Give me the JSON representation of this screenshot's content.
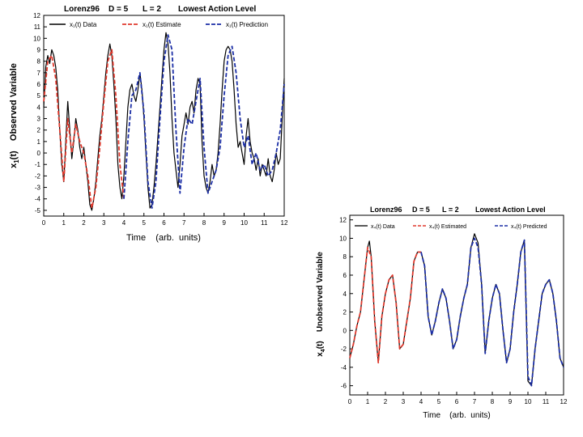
{
  "chart_data": [
    {
      "type": "line",
      "title_parts": [
        "Lorenz96",
        "D = 5",
        "L = 2",
        "Lowest Action Level"
      ],
      "xlabel": "Time    (arb.  units)",
      "ylabel_main": "x",
      "ylabel_sub": "1",
      "ylabel_rest": "(t)    Observed Variable",
      "xlim": [
        0,
        12
      ],
      "ylim": [
        -5.5,
        12
      ],
      "xticks": [
        "0",
        "1",
        "2",
        "3",
        "4",
        "5",
        "6",
        "7",
        "8",
        "9",
        "10",
        "11",
        "12"
      ],
      "yticks": [
        "-5",
        "-4",
        "-3",
        "-2",
        "-1",
        "0",
        "1",
        "2",
        "3",
        "4",
        "5",
        "6",
        "7",
        "8",
        "9",
        "10",
        "11",
        "12"
      ],
      "ytick_values": [
        -5,
        -4,
        -3,
        -2,
        -1,
        0,
        1,
        2,
        3,
        4,
        5,
        6,
        7,
        8,
        9,
        10,
        11,
        12
      ],
      "grid": false,
      "legend_position": "top",
      "series": [
        {
          "name": "x₁(t)  Data",
          "color": "#000000",
          "style": "solid",
          "x": [
            0,
            0.1,
            0.2,
            0.3,
            0.4,
            0.5,
            0.6,
            0.7,
            0.8,
            0.9,
            1.0,
            1.1,
            1.2,
            1.3,
            1.4,
            1.5,
            1.6,
            1.7,
            1.8,
            1.9,
            2.0,
            2.1,
            2.2,
            2.3,
            2.4,
            2.5,
            2.6,
            2.7,
            2.8,
            2.9,
            3.0,
            3.1,
            3.2,
            3.3,
            3.4,
            3.5,
            3.6,
            3.7,
            3.8,
            3.9,
            4.0,
            4.1,
            4.2,
            4.3,
            4.4,
            4.5,
            4.6,
            4.7,
            4.8,
            4.9,
            5.0,
            5.1,
            5.2,
            5.3,
            5.4,
            5.5,
            5.6,
            5.7,
            5.8,
            5.9,
            6.0,
            6.1,
            6.2,
            6.3,
            6.4,
            6.5,
            6.6,
            6.7,
            6.8,
            6.9,
            7.0,
            7.1,
            7.2,
            7.3,
            7.4,
            7.5,
            7.6,
            7.7,
            7.8,
            7.9,
            8.0,
            8.1,
            8.2,
            8.3,
            8.4,
            8.5,
            8.6,
            8.7,
            8.8,
            8.9,
            9.0,
            9.1,
            9.2,
            9.3,
            9.4,
            9.5,
            9.6,
            9.7,
            9.8,
            9.9,
            10.0,
            10.1,
            10.2,
            10.3,
            10.4,
            10.5,
            10.6,
            10.7,
            10.8,
            10.9,
            11.0,
            11.1,
            11.2,
            11.3,
            11.4,
            11.5,
            11.6,
            11.7,
            11.8,
            11.9,
            12.0
          ],
          "y": [
            4.0,
            7.5,
            8.5,
            7.8,
            9.0,
            8.5,
            7.5,
            5.5,
            2.0,
            -1.0,
            -2.5,
            1.0,
            4.5,
            2.0,
            -0.5,
            1.0,
            3.0,
            2.0,
            0.5,
            -0.5,
            0.5,
            -1.0,
            -2.5,
            -4.5,
            -5.0,
            -4.0,
            -2.5,
            -0.5,
            1.5,
            3.0,
            5.0,
            7.0,
            8.5,
            9.5,
            8.5,
            6.0,
            3.0,
            -1.0,
            -3.0,
            -4.0,
            -2.0,
            1.0,
            4.0,
            5.5,
            6.0,
            5.0,
            4.5,
            5.5,
            7.0,
            5.5,
            3.0,
            0.0,
            -3.0,
            -4.8,
            -4.5,
            -3.0,
            -1.0,
            1.5,
            4.0,
            6.5,
            9.0,
            10.5,
            9.5,
            7.0,
            3.0,
            0.0,
            -1.5,
            -3.0,
            -1.0,
            1.5,
            2.5,
            3.5,
            2.5,
            4.0,
            4.5,
            3.5,
            5.5,
            6.5,
            6.0,
            1.0,
            -2.0,
            -3.0,
            -3.5,
            -2.5,
            -1.0,
            -2.0,
            -1.5,
            0.0,
            2.5,
            5.5,
            8.0,
            9.0,
            9.3,
            9.0,
            8.0,
            5.5,
            2.5,
            0.5,
            1.0,
            0.0,
            -1.0,
            1.5,
            3.0,
            1.0,
            0.0,
            -0.5,
            -1.5,
            -0.5,
            -2.0,
            -1.0,
            -1.5,
            -2.0,
            -0.5,
            -2.0,
            -2.5,
            -1.5,
            0.0,
            -1.0,
            -0.5,
            3.0,
            6.5
          ]
        },
        {
          "name": "x₁(t)  Estimate",
          "color": "#e03a2e",
          "style": "dashed",
          "x": [
            0,
            0.2,
            0.4,
            0.6,
            0.8,
            1.0,
            1.2,
            1.4,
            1.6,
            1.8,
            2.0,
            2.2,
            2.4,
            2.6,
            2.8,
            3.0,
            3.2,
            3.4,
            3.6,
            3.8,
            4.0
          ],
          "y": [
            4.5,
            8.0,
            8.5,
            6.5,
            2.0,
            -2.5,
            3.0,
            0.0,
            2.5,
            1.0,
            0.0,
            -2.0,
            -4.8,
            -3.0,
            0.5,
            4.5,
            8.0,
            9.0,
            5.0,
            -1.0,
            -4.0
          ]
        },
        {
          "name": "x₁(t)  Prediction",
          "color": "#1c2fa6",
          "style": "dashed",
          "x": [
            4.0,
            4.2,
            4.4,
            4.6,
            4.8,
            5.0,
            5.2,
            5.4,
            5.6,
            5.8,
            6.0,
            6.2,
            6.4,
            6.6,
            6.8,
            7.0,
            7.2,
            7.4,
            7.6,
            7.8,
            8.0,
            8.2,
            8.4,
            8.6,
            8.8,
            9.0,
            9.2,
            9.4,
            9.6,
            9.8,
            10.0,
            10.2,
            10.4,
            10.6,
            10.8,
            11.0,
            11.2,
            11.4,
            11.6,
            11.8,
            12.0
          ],
          "y": [
            -4.0,
            1.0,
            5.0,
            5.5,
            7.0,
            3.5,
            -2.5,
            -4.8,
            -2.5,
            3.0,
            8.0,
            10.3,
            9.0,
            2.0,
            -3.5,
            0.5,
            3.0,
            2.5,
            4.5,
            6.5,
            0.5,
            -3.5,
            -2.5,
            -1.5,
            0.5,
            5.0,
            8.5,
            9.3,
            7.0,
            3.0,
            0.5,
            1.5,
            -1.0,
            0.0,
            -1.5,
            -1.0,
            -2.0,
            -1.5,
            0.0,
            2.0,
            6.0
          ]
        }
      ]
    },
    {
      "type": "line",
      "title_parts": [
        "Lorenz96",
        "D = 5",
        "L = 2",
        "Lowest Action Level"
      ],
      "xlabel": "Time    (arb.  units)",
      "ylabel_main": "x",
      "ylabel_sub": "4",
      "ylabel_rest": "(t)    Unobserved Variable",
      "xlim": [
        0,
        12
      ],
      "ylim": [
        -7,
        12.5
      ],
      "xticks": [
        "0",
        "1",
        "2",
        "3",
        "4",
        "5",
        "6",
        "7",
        "8",
        "9",
        "10",
        "11",
        "12"
      ],
      "yticks": [
        "-6",
        "-4",
        "-2",
        "0",
        "2",
        "4",
        "6",
        "8",
        "10",
        "12"
      ],
      "ytick_values": [
        -6,
        -4,
        -2,
        0,
        2,
        4,
        6,
        8,
        10,
        12
      ],
      "grid": false,
      "legend_position": "top",
      "series": [
        {
          "name": "x₄(t)   Data",
          "color": "#000000",
          "style": "solid",
          "x": [
            0,
            0.2,
            0.4,
            0.6,
            0.8,
            1.0,
            1.1,
            1.2,
            1.4,
            1.6,
            1.8,
            2.0,
            2.2,
            2.4,
            2.6,
            2.8,
            3.0,
            3.2,
            3.4,
            3.6,
            3.8,
            4.0,
            4.2,
            4.4,
            4.6,
            4.8,
            5.0,
            5.2,
            5.4,
            5.6,
            5.8,
            6.0,
            6.2,
            6.4,
            6.6,
            6.8,
            7.0,
            7.2,
            7.4,
            7.6,
            7.8,
            8.0,
            8.2,
            8.4,
            8.6,
            8.8,
            9.0,
            9.2,
            9.4,
            9.6,
            9.8,
            10.0,
            10.2,
            10.4,
            10.6,
            10.8,
            11.0,
            11.2,
            11.4,
            11.6,
            11.8,
            12.0
          ],
          "y": [
            -3.0,
            -1.5,
            0.5,
            2.0,
            5.5,
            9.0,
            9.7,
            8.0,
            1.0,
            -3.5,
            1.5,
            4.0,
            5.5,
            6.0,
            3.0,
            -2.0,
            -1.5,
            1.0,
            3.5,
            7.5,
            8.5,
            8.5,
            7.0,
            1.5,
            -0.5,
            1.0,
            3.0,
            4.5,
            3.5,
            1.0,
            -2.0,
            -1.0,
            1.5,
            3.5,
            5.0,
            9.0,
            10.5,
            9.5,
            5.0,
            -2.5,
            1.0,
            3.5,
            5.0,
            4.0,
            0.0,
            -3.5,
            -2.0,
            2.0,
            5.0,
            8.5,
            9.8,
            -5.5,
            -6.0,
            -2.0,
            1.0,
            4.0,
            5.0,
            5.5,
            4.0,
            1.0,
            -3.0,
            -4.0
          ]
        },
        {
          "name": "x₄(t)  Estimated",
          "color": "#e03a2e",
          "style": "dashed",
          "x": [
            0,
            0.2,
            0.4,
            0.6,
            0.8,
            1.0,
            1.2,
            1.4,
            1.6,
            1.8,
            2.0,
            2.2,
            2.4,
            2.6,
            2.8,
            3.0,
            3.2,
            3.4,
            3.6,
            3.8,
            4.0
          ],
          "y": [
            -3.0,
            -1.5,
            0.5,
            2.0,
            5.5,
            9.0,
            8.0,
            1.0,
            -3.5,
            1.5,
            4.0,
            5.5,
            6.0,
            3.0,
            -2.0,
            -1.5,
            1.0,
            3.5,
            7.5,
            8.5,
            8.5
          ]
        },
        {
          "name": "x₄(t)  Predicted",
          "color": "#1c2fa6",
          "style": "dashed",
          "x": [
            4.0,
            4.2,
            4.4,
            4.6,
            4.8,
            5.0,
            5.2,
            5.4,
            5.6,
            5.8,
            6.0,
            6.2,
            6.4,
            6.6,
            6.8,
            7.0,
            7.2,
            7.4,
            7.6,
            7.8,
            8.0,
            8.2,
            8.4,
            8.6,
            8.8,
            9.0,
            9.2,
            9.4,
            9.6,
            9.8,
            10.0,
            10.2,
            10.4,
            10.6,
            10.8,
            11.0,
            11.2,
            11.4,
            11.6,
            11.8,
            12.0
          ],
          "y": [
            8.5,
            7.0,
            1.5,
            -0.5,
            1.0,
            3.0,
            4.5,
            3.5,
            1.0,
            -2.0,
            -1.0,
            1.5,
            3.5,
            5.0,
            9.0,
            10.0,
            9.0,
            5.0,
            -2.5,
            1.0,
            3.5,
            5.0,
            4.0,
            0.0,
            -3.5,
            -2.0,
            2.0,
            5.0,
            8.5,
            9.8,
            -5.0,
            -6.0,
            -2.0,
            1.0,
            4.0,
            5.0,
            5.5,
            4.0,
            1.0,
            -3.0,
            -4.0
          ]
        }
      ]
    }
  ]
}
